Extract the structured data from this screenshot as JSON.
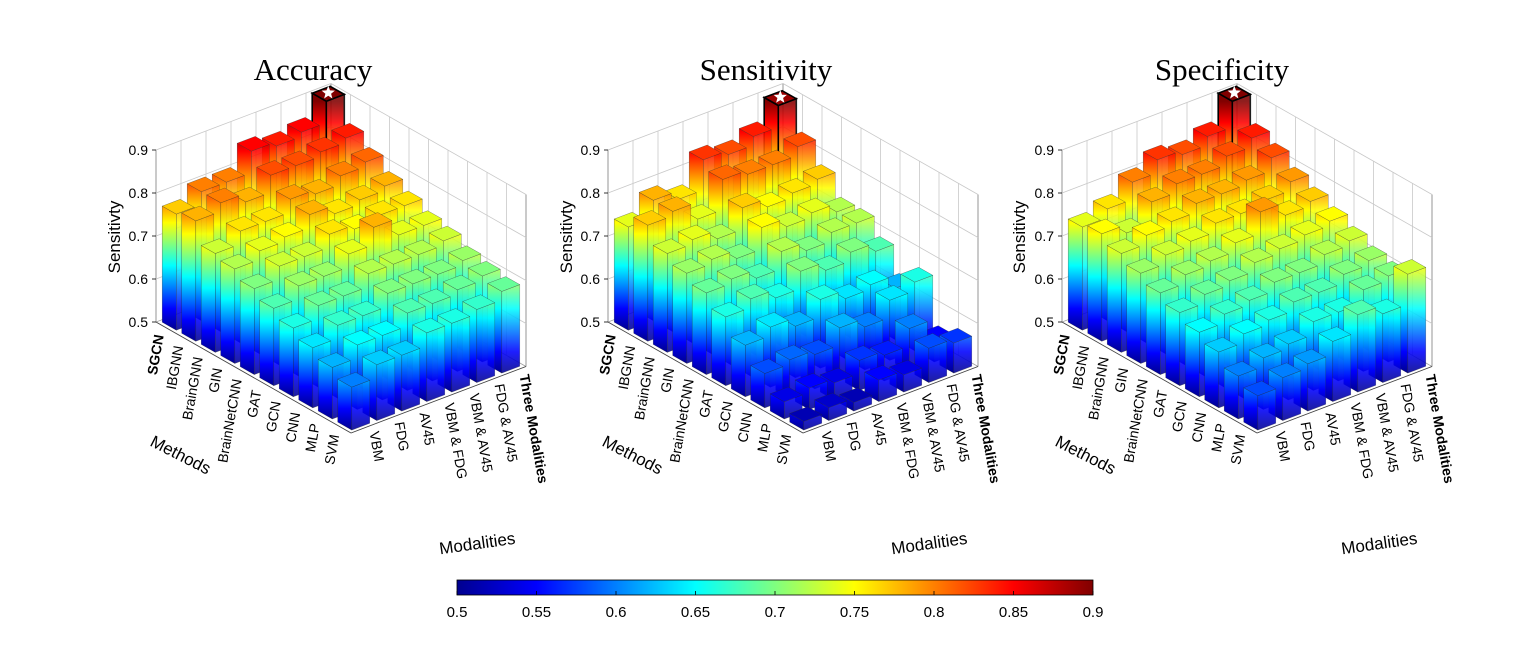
{
  "chart_data": [
    {
      "type": "bar3d",
      "title": "Accuracy",
      "zlabel": "Sensitivty",
      "xlabel": "Methods",
      "ylabel": "Modalities",
      "zlim": [
        0.5,
        0.9
      ],
      "zticks": [
        "0.5",
        "0.6",
        "0.7",
        "0.8",
        "0.9"
      ],
      "methods": [
        "SGCN",
        "IBGNN",
        "BrainGNN",
        "GIN",
        "BrainNetCNN",
        "GAT",
        "GCN",
        "CNN",
        "MLP",
        "SVM"
      ],
      "modalities": [
        "VBM",
        "FDG",
        "AV45",
        "VBM & FDG",
        "VBM & AV45",
        "FDG & AV45",
        "Three Modalities"
      ],
      "highlight": {
        "method": "SGCN",
        "modality": "Three Modalities",
        "marker": "star"
      },
      "values": [
        [
          0.77,
          0.8,
          0.8,
          0.85,
          0.84,
          0.85,
          0.9
        ],
        [
          0.78,
          0.8,
          0.78,
          0.82,
          0.82,
          0.83,
          0.84
        ],
        [
          0.73,
          0.76,
          0.76,
          0.79,
          0.78,
          0.8,
          0.81
        ],
        [
          0.72,
          0.74,
          0.75,
          0.78,
          0.76,
          0.77,
          0.78
        ],
        [
          0.7,
          0.73,
          0.73,
          0.76,
          0.75,
          0.76,
          0.76
        ],
        [
          0.68,
          0.71,
          0.71,
          0.74,
          0.78,
          0.74,
          0.74
        ],
        [
          0.66,
          0.69,
          0.69,
          0.72,
          0.72,
          0.72,
          0.73
        ],
        [
          0.64,
          0.67,
          0.67,
          0.7,
          0.7,
          0.7,
          0.71
        ],
        [
          0.62,
          0.65,
          0.65,
          0.68,
          0.68,
          0.69,
          0.7
        ],
        [
          0.6,
          0.63,
          0.63,
          0.66,
          0.66,
          0.67,
          0.69
        ]
      ]
    },
    {
      "type": "bar3d",
      "title": "Sensitivity",
      "zlabel": "Sensitivty",
      "xlabel": "Methods",
      "ylabel": "Modalities",
      "zlim": [
        0.5,
        0.9
      ],
      "zticks": [
        "0.5",
        "0.6",
        "0.7",
        "0.8",
        "0.9"
      ],
      "methods": [
        "SGCN",
        "IBGNN",
        "BrainGNN",
        "GIN",
        "BrainNetCNN",
        "GAT",
        "GCN",
        "CNN",
        "MLP",
        "SVM"
      ],
      "modalities": [
        "VBM",
        "FDG",
        "AV45",
        "VBM & FDG",
        "VBM & AV45",
        "FDG & AV45",
        "Three Modalities"
      ],
      "highlight": {
        "method": "SGCN",
        "modality": "Three Modalities",
        "marker": "star"
      },
      "values": [
        [
          0.74,
          0.78,
          0.76,
          0.83,
          0.82,
          0.84,
          0.89
        ],
        [
          0.77,
          0.78,
          0.74,
          0.81,
          0.8,
          0.8,
          0.82
        ],
        [
          0.73,
          0.74,
          0.72,
          0.77,
          0.75,
          0.76,
          0.77
        ],
        [
          0.71,
          0.72,
          0.7,
          0.75,
          0.73,
          0.74,
          0.72
        ],
        [
          0.69,
          0.7,
          0.68,
          0.72,
          0.7,
          0.72,
          0.72
        ],
        [
          0.66,
          0.68,
          0.66,
          0.7,
          0.68,
          0.7,
          0.68
        ],
        [
          0.62,
          0.64,
          0.62,
          0.66,
          0.64,
          0.65,
          0.62
        ],
        [
          0.58,
          0.59,
          0.58,
          0.62,
          0.6,
          0.64,
          0.66
        ],
        [
          0.54,
          0.55,
          0.54,
          0.57,
          0.56,
          0.6,
          0.55
        ],
        [
          0.52,
          0.53,
          0.52,
          0.55,
          0.54,
          0.58,
          0.57
        ]
      ]
    },
    {
      "type": "bar3d",
      "title": "Specificity",
      "zlabel": "Sensitivty",
      "xlabel": "Methods",
      "ylabel": "Modalities",
      "zlim": [
        0.5,
        0.9
      ],
      "zticks": [
        "0.5",
        "0.6",
        "0.7",
        "0.8",
        "0.9"
      ],
      "methods": [
        "SGCN",
        "IBGNN",
        "BrainGNN",
        "GIN",
        "BrainNetCNN",
        "GAT",
        "GCN",
        "CNN",
        "MLP",
        "SVM"
      ],
      "modalities": [
        "VBM",
        "FDG",
        "AV45",
        "VBM & FDG",
        "VBM & AV45",
        "FDG & AV45",
        "Three Modalities"
      ],
      "highlight": {
        "method": "SGCN",
        "modality": "Three Modalities",
        "marker": "star"
      },
      "values": [
        [
          0.74,
          0.76,
          0.8,
          0.83,
          0.82,
          0.84,
          0.9
        ],
        [
          0.75,
          0.73,
          0.78,
          0.8,
          0.8,
          0.82,
          0.84
        ],
        [
          0.73,
          0.75,
          0.76,
          0.78,
          0.78,
          0.79,
          0.82
        ],
        [
          0.71,
          0.73,
          0.74,
          0.76,
          0.76,
          0.77,
          0.79
        ],
        [
          0.69,
          0.71,
          0.72,
          0.74,
          0.79,
          0.76,
          0.77
        ],
        [
          0.67,
          0.69,
          0.7,
          0.72,
          0.73,
          0.74,
          0.75
        ],
        [
          0.65,
          0.67,
          0.68,
          0.7,
          0.7,
          0.72,
          0.73
        ],
        [
          0.63,
          0.65,
          0.66,
          0.68,
          0.68,
          0.7,
          0.71
        ],
        [
          0.6,
          0.62,
          0.63,
          0.66,
          0.66,
          0.69,
          0.7
        ],
        [
          0.58,
          0.6,
          0.61,
          0.64,
          0.68,
          0.66,
          0.73
        ]
      ]
    }
  ],
  "colorbar": {
    "colormap": "jet",
    "range": [
      0.5,
      0.9
    ],
    "ticks": [
      "0.5",
      "0.55",
      "0.6",
      "0.65",
      "0.7",
      "0.75",
      "0.8",
      "0.85",
      "0.9"
    ]
  }
}
